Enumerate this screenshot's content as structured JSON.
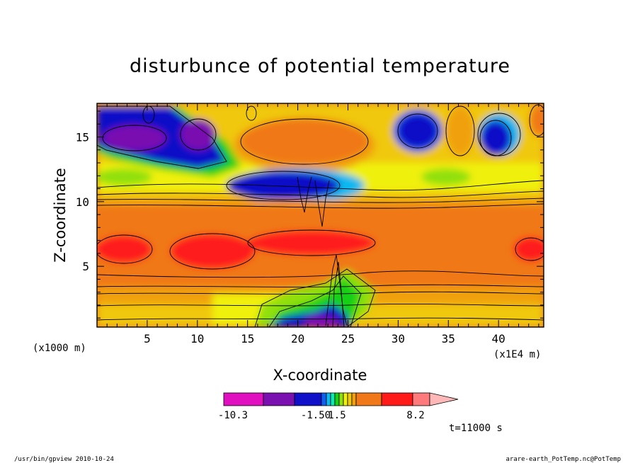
{
  "chart_data": {
    "type": "heatmap",
    "title": "disturbunce of potential temperature",
    "xlabel": "X-coordinate",
    "ylabel": "Z-coordinate",
    "x_unit_label": "(x1E4 m)",
    "y_unit_label": "(x1000 m)",
    "xlim": [
      0,
      44.5
    ],
    "ylim": [
      0.3,
      17.6
    ],
    "x_ticks": [
      5,
      10,
      15,
      20,
      25,
      30,
      35,
      40
    ],
    "y_ticks": [
      5,
      10,
      15
    ],
    "x_tick_labels": [
      "5",
      "10",
      "15",
      "20",
      "25",
      "30",
      "35",
      "40"
    ],
    "y_tick_labels": [
      "5",
      "10",
      "15"
    ],
    "colorbar": {
      "colors": [
        "#e010c0",
        "#7a10b0",
        "#1010c8",
        "#1060f0",
        "#10b8f0",
        "#10e8b0",
        "#18d018",
        "#90e010",
        "#f0f010",
        "#f0c810",
        "#f0a010",
        "#f07818",
        "#ff1a1a",
        "#ff7a7a",
        "#ffb8b8"
      ],
      "labels": [
        "-10.3",
        "-1.50",
        "1.5",
        "8.2"
      ]
    },
    "time_label": "t=11000 s",
    "left_footer": "/usr/bin/gpview  2010-10-24",
    "right_footer": "arare-earth_PotTemp.nc@PotTemp"
  }
}
